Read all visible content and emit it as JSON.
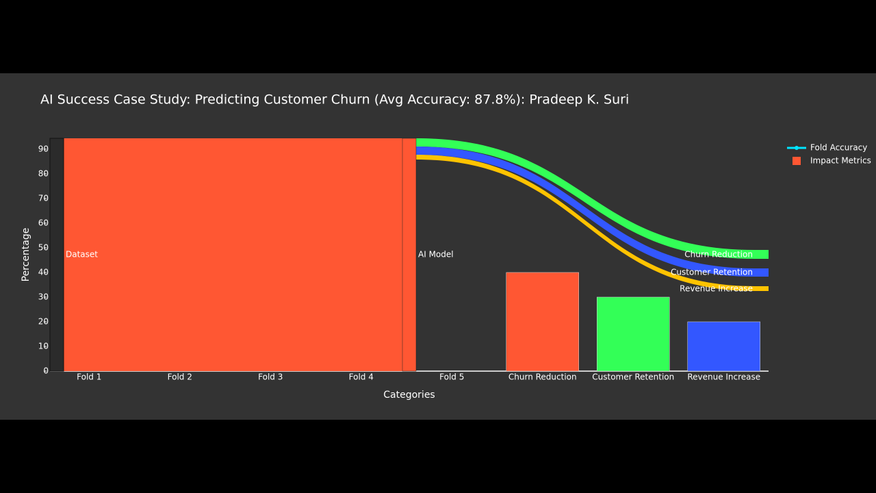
{
  "chart_data": {
    "type": "bar",
    "title": "AI Success Case Study: Predicting Customer Churn (Avg Accuracy: 87.8%): Pradeep K. Suri",
    "x_label": "Categories",
    "y_label": "Percentage",
    "categories": [
      "Fold 1",
      "Fold 2",
      "Fold 3",
      "Fold 4",
      "Fold 5",
      "Churn Reduction",
      "Customer Retention",
      "Revenue Increase"
    ],
    "values": [
      null,
      null,
      null,
      null,
      null,
      40,
      30,
      20
    ],
    "colors": [
      "#ff5733",
      "#ff5733",
      "#ff5733",
      "#ff5733",
      "#ff5733",
      "#ff5733",
      "#33ff57",
      "#3357ff"
    ],
    "ylim": [
      0,
      94.4
    ],
    "yticks": [
      0,
      10,
      20,
      30,
      40,
      50,
      60,
      70,
      80,
      90
    ],
    "grid": false,
    "legend": [
      {
        "name": "Fold Accuracy",
        "color": "#00e5ff",
        "symbol": "line"
      },
      {
        "name": "Impact Metrics",
        "color": "#ff5733",
        "symbol": "square"
      }
    ],
    "legend_position": "right",
    "sankey": {
      "nodes": [
        "Dataset",
        "AI Model",
        "Churn Reduction",
        "Customer Retention",
        "Revenue Increase"
      ]
    }
  }
}
